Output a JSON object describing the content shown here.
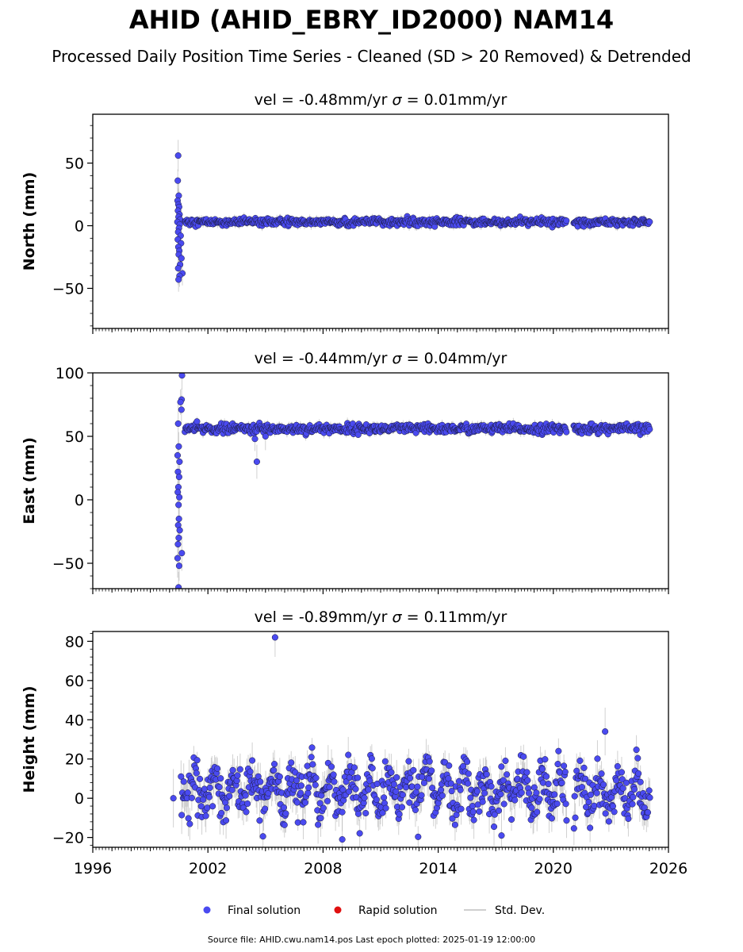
{
  "figure": {
    "title": "AHID (AHID_EBRY_ID2000) NAM14",
    "subtitle": "Processed Daily Position Time Series - Cleaned (SD > 20 Removed) & Detrended",
    "footer": "Source file: AHID.cwu.nam14.pos  Last epoch plotted: 2025-01-19 12:00:00"
  },
  "legend": {
    "placement": "bottom-center",
    "items": [
      {
        "label": "Final solution",
        "color": "#4a4af0",
        "marker": "circle"
      },
      {
        "label": "Rapid solution",
        "color": "#e01010",
        "marker": "circle"
      },
      {
        "label": "Std. Dev.",
        "color": "#cfcfcf",
        "marker": "line"
      }
    ]
  },
  "colors": {
    "final": "#4a4af0",
    "final_edge": "#1a1a3a",
    "rapid": "#e01010",
    "stddev": "#bdbdbd",
    "axis": "#000000"
  },
  "chart_data": [
    {
      "type": "scatter",
      "title": "vel = -0.48mm/yr   σ = 0.01mm/yr",
      "title_parts": {
        "vel": "vel = -0.48mm/yr",
        "sigma_symbol": "σ",
        "sigma": " = 0.01mm/yr"
      },
      "ylabel": "North (mm)",
      "xlim": [
        1996,
        2026
      ],
      "ylim": [
        -82,
        89
      ],
      "yticks": [
        50,
        0,
        -50
      ],
      "ytick_labels": [
        "50",
        "0",
        "−50"
      ],
      "xtick_labels_shown": false,
      "grid": false,
      "early_points": [
        [
          2000.45,
          56
        ],
        [
          2000.43,
          36
        ],
        [
          2000.48,
          24
        ],
        [
          2000.42,
          20
        ],
        [
          2000.46,
          17
        ],
        [
          2000.5,
          15
        ],
        [
          2000.44,
          12
        ],
        [
          2000.52,
          9
        ],
        [
          2000.47,
          7
        ],
        [
          2000.55,
          5
        ],
        [
          2000.41,
          3
        ],
        [
          2000.53,
          1
        ],
        [
          2000.49,
          -2
        ],
        [
          2000.45,
          -5
        ],
        [
          2000.58,
          -8
        ],
        [
          2000.43,
          -11
        ],
        [
          2000.6,
          -14
        ],
        [
          2000.46,
          -17
        ],
        [
          2000.51,
          -20
        ],
        [
          2000.48,
          -23
        ],
        [
          2000.62,
          -26
        ],
        [
          2000.55,
          -31
        ],
        [
          2000.45,
          -34
        ],
        [
          2000.67,
          -38
        ],
        [
          2000.52,
          -40
        ],
        [
          2000.47,
          -43
        ]
      ],
      "series": {
        "baseline": 3.0,
        "noise_sd": 1.4,
        "start": 2000.8,
        "end": 2025.05,
        "gap": [
          2020.7,
          2021.05
        ],
        "outlier": null
      }
    },
    {
      "type": "scatter",
      "title": "vel = -0.44mm/yr   σ = 0.04mm/yr",
      "title_parts": {
        "vel": "vel = -0.44mm/yr",
        "sigma_symbol": "σ",
        "sigma": " = 0.04mm/yr"
      },
      "ylabel": "East (mm)",
      "xlim": [
        1996,
        2026
      ],
      "ylim": [
        -70,
        100
      ],
      "yticks": [
        100,
        50,
        0,
        -50
      ],
      "ytick_labels": [
        "100",
        "50",
        "0",
        "−50"
      ],
      "xtick_labels_shown": false,
      "grid": false,
      "early_points": [
        [
          2000.65,
          98
        ],
        [
          2000.63,
          79
        ],
        [
          2000.57,
          77
        ],
        [
          2000.62,
          71
        ],
        [
          2000.45,
          60
        ],
        [
          2000.48,
          42
        ],
        [
          2000.42,
          35
        ],
        [
          2000.52,
          30
        ],
        [
          2000.44,
          22
        ],
        [
          2000.5,
          18
        ],
        [
          2000.46,
          10
        ],
        [
          2000.43,
          6
        ],
        [
          2000.51,
          2
        ],
        [
          2000.47,
          -4
        ],
        [
          2000.49,
          -15
        ],
        [
          2000.45,
          -20
        ],
        [
          2000.53,
          -24
        ],
        [
          2000.48,
          -30
        ],
        [
          2000.44,
          -35
        ],
        [
          2000.64,
          -42
        ],
        [
          2000.42,
          -46
        ],
        [
          2000.5,
          -52
        ],
        [
          2000.47,
          -69
        ]
      ],
      "extra_points": [
        [
          2004.45,
          48
        ],
        [
          2004.55,
          30
        ],
        [
          2005.0,
          50
        ]
      ],
      "series": {
        "baseline": 56.0,
        "noise_sd": 1.8,
        "start": 2000.8,
        "end": 2025.05,
        "gap": [
          2020.7,
          2021.05
        ],
        "outlier": null
      }
    },
    {
      "type": "scatter",
      "title": "vel = -0.89mm/yr   σ = 0.11mm/yr",
      "title_parts": {
        "vel": "vel = -0.89mm/yr",
        "sigma_symbol": "σ",
        "sigma": " = 0.11mm/yr"
      },
      "ylabel": "Height (mm)",
      "xlabel": "",
      "xlim": [
        1996,
        2026
      ],
      "ylim": [
        -25,
        85
      ],
      "yticks": [
        80,
        60,
        40,
        20,
        0,
        -20
      ],
      "ytick_labels": [
        "80",
        "60",
        "40",
        "20",
        "0",
        "−20"
      ],
      "xticks": [
        1996,
        2002,
        2008,
        2014,
        2020,
        2026
      ],
      "xtick_labels": [
        "1996",
        "2002",
        "2008",
        "2014",
        "2020",
        "2026"
      ],
      "grid": false,
      "early_points": [
        [
          2000.2,
          0
        ]
      ],
      "extra_points": [
        [
          2005.5,
          82
        ],
        [
          2009.0,
          -21
        ],
        [
          2017.3,
          -19
        ],
        [
          2022.7,
          34
        ]
      ],
      "series": {
        "baseline": 4.0,
        "noise_sd": 5.5,
        "seasonal_amp": 7.0,
        "start": 2000.6,
        "end": 2025.05,
        "gap": [
          2020.7,
          2021.05
        ]
      }
    }
  ]
}
